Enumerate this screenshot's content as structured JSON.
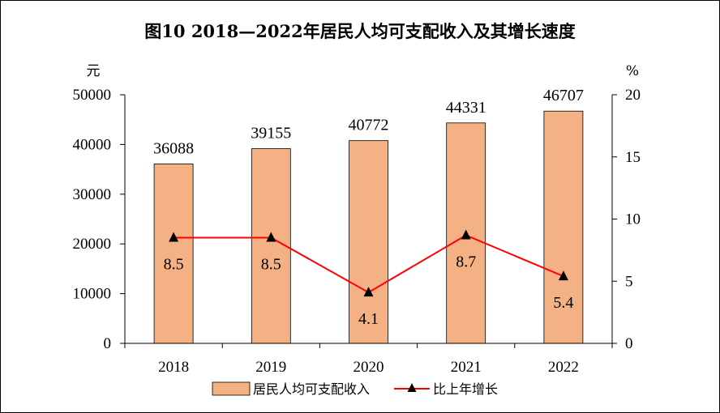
{
  "chart_data": {
    "type": "bar",
    "title": "图10   2018—2022年居民人均可支配收入及其增长速度",
    "categories": [
      "2018",
      "2019",
      "2020",
      "2021",
      "2022"
    ],
    "series": [
      {
        "name": "居民人均可支配收入",
        "type": "bar",
        "axis": "left",
        "values": [
          36088,
          39155,
          40772,
          44331,
          46707
        ],
        "color": "#F4B183"
      },
      {
        "name": "比上年增长",
        "type": "line",
        "axis": "right",
        "values": [
          8.5,
          8.5,
          4.1,
          8.7,
          5.4
        ],
        "color": "#FF0000",
        "marker": "triangle"
      }
    ],
    "ylabel_left": "元",
    "ylabel_right": "%",
    "ylim_left": [
      0,
      50000
    ],
    "yticks_left": [
      0,
      10000,
      20000,
      30000,
      40000,
      50000
    ],
    "ylim_right": [
      0,
      20
    ],
    "yticks_right": [
      0,
      5,
      10,
      15,
      20
    ],
    "grid": false,
    "legend_position": "bottom"
  }
}
